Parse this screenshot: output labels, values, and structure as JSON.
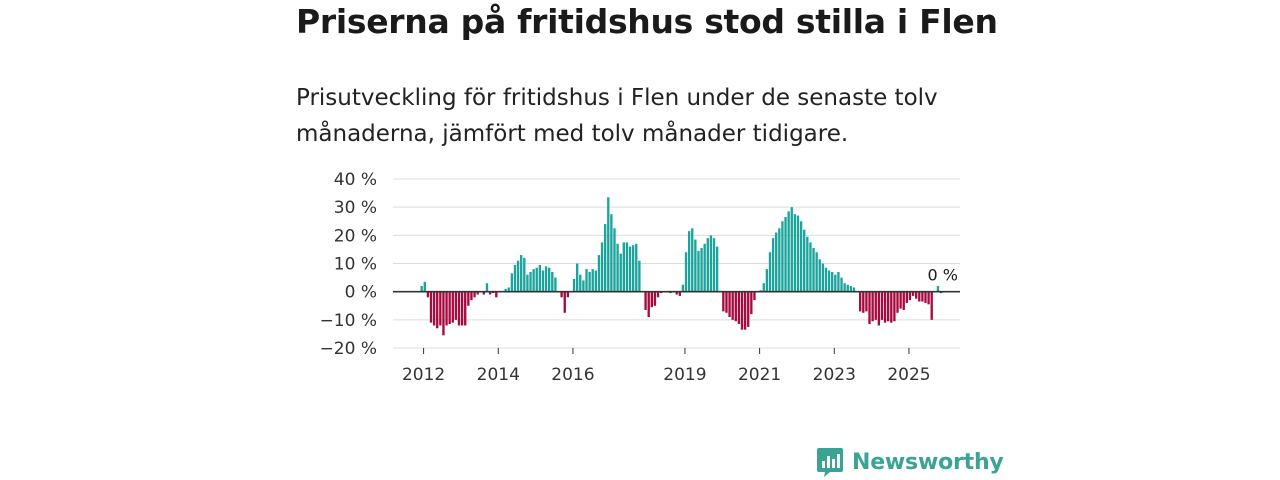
{
  "title": "Priserna på fritidshus stod stilla i Flen",
  "subtitle": "Prisutveckling för fritidshus i Flen under de senaste tolv månaderna, jämfört med tolv månader tidigare.",
  "brand": "Newsworthy",
  "colors": {
    "positive": "#1ba39c",
    "negative": "#a8093f",
    "grid": "#dcdcdc",
    "zero": "#333333",
    "brand": "#3aa394"
  },
  "chart_data": {
    "type": "bar",
    "ylim": [
      -20,
      40
    ],
    "ytick_values": [
      40,
      30,
      20,
      10,
      0,
      -10,
      -20
    ],
    "ytick_labels": [
      "40 %",
      "30 %",
      "20 %",
      "10 %",
      "0 %",
      "−10 %",
      "−20 %"
    ],
    "xtick_labels": [
      "2012",
      "2014",
      "2016",
      "2019",
      "2021",
      "2023",
      "2025"
    ],
    "xtick_dates": [
      2012.0,
      2014.0,
      2016.0,
      2019.0,
      2021.0,
      2023.0,
      2025.0
    ],
    "start_date": 2011.917,
    "bar_step": 0.0833,
    "annotation": {
      "text": "0 %",
      "value": 0
    },
    "values": [
      2,
      3.5,
      -2,
      -11,
      -12,
      -13,
      -12,
      -15.5,
      -12,
      -11.5,
      -11,
      -10,
      -12,
      -12,
      -12,
      -5,
      -3,
      -2,
      -1,
      0,
      -1,
      3,
      -1,
      -0.5,
      -2,
      0,
      0,
      1,
      1.5,
      6.5,
      9.5,
      11,
      13,
      12,
      6,
      7,
      8,
      8.5,
      9.5,
      7.5,
      9,
      8.5,
      7,
      5,
      0,
      -2,
      -7.5,
      -2,
      0,
      4.5,
      10,
      6,
      4,
      8,
      7,
      8,
      7.5,
      13,
      17.5,
      24,
      33.5,
      27.5,
      22.5,
      17,
      13.5,
      17.5,
      17.5,
      16,
      16.5,
      17,
      11,
      0,
      -6.5,
      -9,
      -5.5,
      -5,
      -2,
      -0.5,
      0,
      0,
      -0.5,
      0,
      -1,
      -1.5,
      2.5,
      14,
      21.5,
      22.5,
      18.5,
      14.5,
      15.5,
      17,
      19,
      20,
      19,
      16,
      0,
      -7,
      -7.5,
      -9,
      -10,
      -10.5,
      -11.5,
      -13.5,
      -13.5,
      -12.5,
      -8,
      -3,
      0,
      0.5,
      3,
      8,
      14,
      19,
      21,
      22.5,
      25,
      26.5,
      28.5,
      30,
      27.5,
      27,
      25,
      22,
      19.5,
      17.5,
      15.5,
      14,
      11.5,
      10,
      8.5,
      7.5,
      7,
      6,
      7,
      5,
      3,
      2.5,
      2,
      1.5,
      0,
      -7,
      -7.5,
      -7,
      -11.5,
      -10.5,
      -10,
      -12,
      -10,
      -11,
      -10.5,
      -11,
      -10.5,
      -7.5,
      -6,
      -6.5,
      -4,
      -3,
      -1.5,
      -2.5,
      -3.5,
      -3.5,
      -4,
      -4.5,
      -10,
      0,
      2,
      -0.5
    ]
  }
}
